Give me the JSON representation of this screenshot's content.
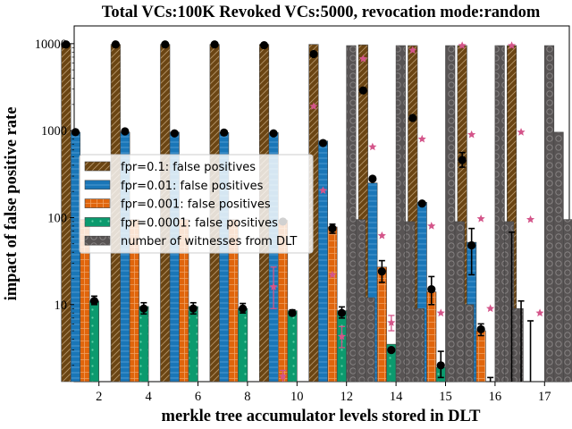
{
  "chart_data": {
    "type": "bar",
    "title": "Total VCs:100K Revoked VCs:5000, revocation mode:random",
    "xlabel": "merkle tree accumulator levels stored in DLT",
    "ylabel": "impact of false positive rate",
    "yscale": "log",
    "ylim": [
      1.3,
      16000
    ],
    "yticks": [
      10,
      100,
      1000,
      10000
    ],
    "ytick_labels": [
      "10",
      "100",
      "1000",
      "10000"
    ],
    "categories": [
      "2",
      "4",
      "6",
      "8",
      "10",
      "12",
      "14",
      "15",
      "16",
      "17"
    ],
    "legend_position": "center-left",
    "grid": false,
    "series": [
      {
        "name": "fpr=0.1: false positives",
        "color": "#6b4513",
        "hatch": "diag",
        "values": [
          9800,
          9800,
          9800,
          9800,
          9800,
          9800,
          9700,
          9500,
          9500,
          9500
        ]
      },
      {
        "name": "fpr=0.01: false positives",
        "color": "#1a76b7",
        "hatch": "hline",
        "values": [
          960,
          960,
          960,
          950,
          950,
          760,
          250,
          150,
          52,
          0
        ]
      },
      {
        "name": "fpr=0.001: false positives",
        "color": "#e0650c",
        "hatch": "grid",
        "values": [
          95,
          95,
          95,
          95,
          93,
          78,
          27,
          14,
          5,
          0
        ]
      },
      {
        "name": "fpr=0.0001: false positives",
        "color": "#0c9a6e",
        "hatch": "dot",
        "values": [
          11,
          9.5,
          9.5,
          9,
          8.5,
          8.5,
          3.5,
          1.9,
          0,
          0
        ]
      },
      {
        "name": "number of witnesses from DLT",
        "color": "#585454",
        "hatch": "circle",
        "values": [
          0,
          0,
          0,
          0,
          0,
          9500,
          9500,
          9500,
          9500,
          9500
        ]
      },
      {
        "name": "",
        "color": "#585454",
        "hatch": "circle",
        "values": [
          0,
          0,
          0,
          0,
          0,
          95,
          90,
          90,
          90,
          960
        ]
      },
      {
        "name": "",
        "color": "#585454",
        "hatch": "circle",
        "values": [
          0,
          0,
          0,
          0,
          0,
          12,
          9,
          10,
          9,
          95
        ]
      },
      {
        "name": "",
        "color": "#585454",
        "hatch": "circle",
        "values": [
          0,
          0,
          0,
          0,
          0,
          0,
          0,
          0,
          0,
          8
        ]
      }
    ],
    "black_points": [
      {
        "cat": 0,
        "s": 0,
        "y": 9800
      },
      {
        "cat": 0,
        "s": 1,
        "y": 960
      },
      {
        "cat": 0,
        "s": 3,
        "y": 11,
        "err": [
          10,
          12.5
        ]
      },
      {
        "cat": 1,
        "s": 0,
        "y": 9800
      },
      {
        "cat": 1,
        "s": 1,
        "y": 980
      },
      {
        "cat": 1,
        "s": 3,
        "y": 9,
        "err": [
          7.8,
          10.5
        ]
      },
      {
        "cat": 2,
        "s": 0,
        "y": 9800
      },
      {
        "cat": 2,
        "s": 1,
        "y": 930
      },
      {
        "cat": 2,
        "s": 3,
        "y": 9,
        "err": [
          7.8,
          10.5
        ]
      },
      {
        "cat": 3,
        "s": 0,
        "y": 9800
      },
      {
        "cat": 3,
        "s": 1,
        "y": 950
      },
      {
        "cat": 3,
        "s": 3,
        "y": 9,
        "err": [
          8,
          10.3
        ]
      },
      {
        "cat": 4,
        "s": 0,
        "y": 9600
      },
      {
        "cat": 4,
        "s": 1,
        "y": 930
      },
      {
        "cat": 4,
        "s": 2,
        "y": 90
      },
      {
        "cat": 4,
        "s": 3,
        "y": 8,
        "err": [
          7.5,
          8.7
        ]
      },
      {
        "cat": 5,
        "s": 0,
        "y": 7600
      },
      {
        "cat": 5,
        "s": 1,
        "y": 720
      },
      {
        "cat": 5,
        "s": 2,
        "y": 75,
        "err": [
          66,
          84
        ]
      },
      {
        "cat": 5,
        "s": 3,
        "y": 8,
        "err": [
          7,
          9.4
        ]
      },
      {
        "cat": 6,
        "s": 0,
        "y": 2900
      },
      {
        "cat": 6,
        "s": 1,
        "y": 280
      },
      {
        "cat": 6,
        "s": 2,
        "y": 24,
        "err": [
          18,
          32
        ]
      },
      {
        "cat": 6,
        "s": 3,
        "y": 3
      },
      {
        "cat": 7,
        "s": 0,
        "y": 1400
      },
      {
        "cat": 7,
        "s": 1,
        "y": 145
      },
      {
        "cat": 7,
        "s": 2,
        "y": 15,
        "err": [
          10,
          21
        ]
      },
      {
        "cat": 7,
        "s": 3,
        "y": 2,
        "err": [
          1.45,
          2.9
        ]
      },
      {
        "cat": 8,
        "s": 0,
        "y": 460,
        "err": [
          380,
          560
        ]
      },
      {
        "cat": 8,
        "s": 1,
        "y": 48,
        "err": [
          22,
          75
        ]
      },
      {
        "cat": 8,
        "s": 2,
        "y": 5.2,
        "err": [
          4.4,
          6
        ]
      },
      {
        "cat": 8,
        "s": 3,
        "y": 0,
        "err": [
          1.3,
          1.45
        ]
      },
      {
        "cat": 9,
        "s": 0,
        "y": 0,
        "err": [
          1.3,
          68
        ]
      },
      {
        "cat": 9,
        "s": 1,
        "y": 0,
        "err": [
          1.3,
          11
        ]
      },
      {
        "cat": 9,
        "s": 2,
        "y": 0,
        "err": [
          1.3,
          6.5
        ]
      }
    ],
    "pink_points": [
      {
        "cat": 4,
        "s": 1,
        "y": 16,
        "err": [
          9,
          27
        ]
      },
      {
        "cat": 4,
        "s": 2,
        "y": 1.5,
        "err": [
          1.3,
          1.75
        ]
      },
      {
        "cat": 5,
        "s": 0,
        "y": 1900
      },
      {
        "cat": 5,
        "s": 1,
        "y": 205
      },
      {
        "cat": 5,
        "s": 2,
        "y": 22
      },
      {
        "cat": 5,
        "s": 3,
        "y": 4.3,
        "err": [
          3.2,
          5.6
        ]
      },
      {
        "cat": 6,
        "s": 0,
        "y": 6700
      },
      {
        "cat": 6,
        "s": 1,
        "y": 650
      },
      {
        "cat": 6,
        "s": 2,
        "y": 62
      },
      {
        "cat": 6,
        "s": 3,
        "y": 6.2,
        "err": [
          5,
          7.5
        ]
      },
      {
        "cat": 7,
        "s": 0,
        "y": 8400
      },
      {
        "cat": 7,
        "s": 1,
        "y": 800
      },
      {
        "cat": 7,
        "s": 2,
        "y": 80
      },
      {
        "cat": 7,
        "s": 3,
        "y": 8
      },
      {
        "cat": 8,
        "s": 0,
        "y": 9500
      },
      {
        "cat": 8,
        "s": 1,
        "y": 900
      },
      {
        "cat": 8,
        "s": 2,
        "y": 97
      },
      {
        "cat": 8,
        "s": 3,
        "y": 9
      },
      {
        "cat": 9,
        "s": 0,
        "y": 9500
      },
      {
        "cat": 9,
        "s": 1,
        "y": 960
      },
      {
        "cat": 9,
        "s": 2,
        "y": 95
      },
      {
        "cat": 9,
        "s": 3,
        "y": 8
      }
    ]
  }
}
